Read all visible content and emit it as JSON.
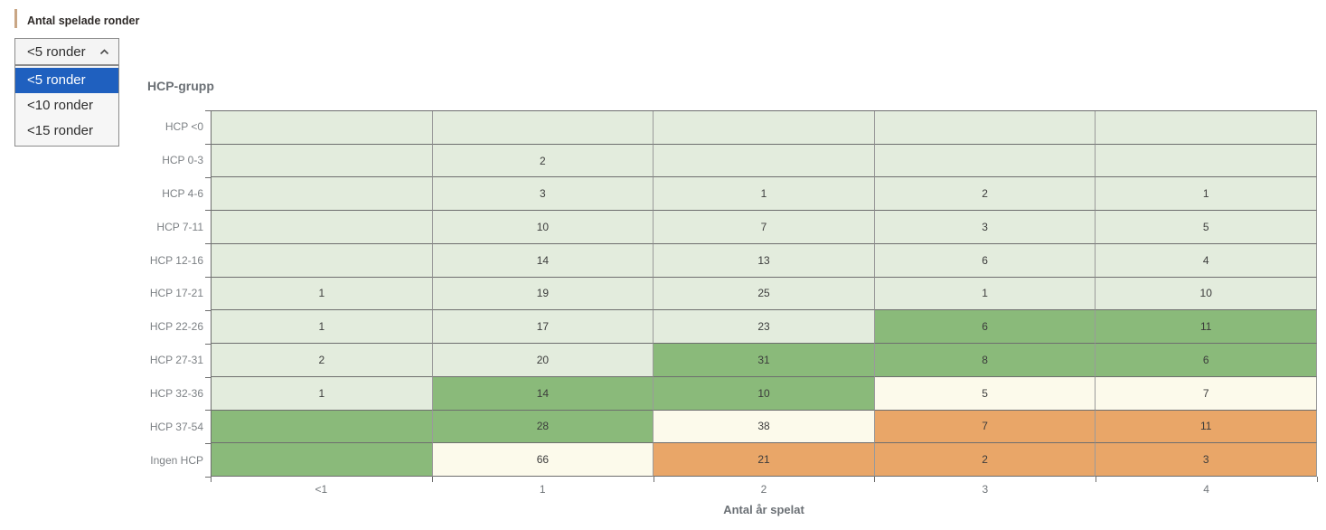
{
  "filter": {
    "label": "Antal spelade ronder",
    "selected": "<5 ronder",
    "options": [
      "<5 ronder",
      "<10 ronder",
      "<15 ronder"
    ],
    "selected_index": 0,
    "accent_bar_color": "#c9a685",
    "highlight_color": "#1f60bf"
  },
  "chart_data": {
    "type": "heatmap",
    "title": "HCP-grupp",
    "xlabel": "Antal år spelat",
    "x_categories": [
      "<1",
      "1",
      "2",
      "3",
      "4"
    ],
    "y_categories": [
      "HCP <0",
      "HCP 0-3",
      "HCP 4-6",
      "HCP 7-11",
      "HCP 12-16",
      "HCP 17-21",
      "HCP 22-26",
      "HCP 27-31",
      "HCP 32-36",
      "HCP 37-54",
      "Ingen HCP"
    ],
    "values": [
      [
        null,
        null,
        null,
        null,
        null
      ],
      [
        null,
        2,
        null,
        null,
        null
      ],
      [
        null,
        3,
        1,
        2,
        1
      ],
      [
        null,
        10,
        7,
        3,
        5
      ],
      [
        null,
        14,
        13,
        6,
        4
      ],
      [
        1,
        19,
        25,
        1,
        10
      ],
      [
        1,
        17,
        23,
        6,
        11
      ],
      [
        2,
        20,
        31,
        8,
        6
      ],
      [
        1,
        14,
        10,
        5,
        7
      ],
      [
        null,
        28,
        38,
        7,
        11
      ],
      [
        null,
        66,
        21,
        2,
        3
      ]
    ],
    "cell_colors": [
      [
        "light",
        "light",
        "light",
        "light",
        "light"
      ],
      [
        "light",
        "light",
        "light",
        "light",
        "light"
      ],
      [
        "light",
        "light",
        "light",
        "light",
        "light"
      ],
      [
        "light",
        "light",
        "light",
        "light",
        "light"
      ],
      [
        "light",
        "light",
        "light",
        "light",
        "light"
      ],
      [
        "light",
        "light",
        "light",
        "light",
        "light"
      ],
      [
        "light",
        "light",
        "light",
        "green",
        "green"
      ],
      [
        "light",
        "light",
        "green",
        "green",
        "green"
      ],
      [
        "light",
        "green",
        "green",
        "cream",
        "cream"
      ],
      [
        "green",
        "green",
        "cream",
        "orange",
        "orange"
      ],
      [
        "green",
        "cream",
        "orange",
        "orange",
        "orange"
      ]
    ],
    "palette": {
      "light": "#e3ecdd",
      "green": "#8aba7a",
      "cream": "#fcfaeb",
      "orange": "#e9a668"
    },
    "grid": true,
    "legend_position": "none"
  }
}
